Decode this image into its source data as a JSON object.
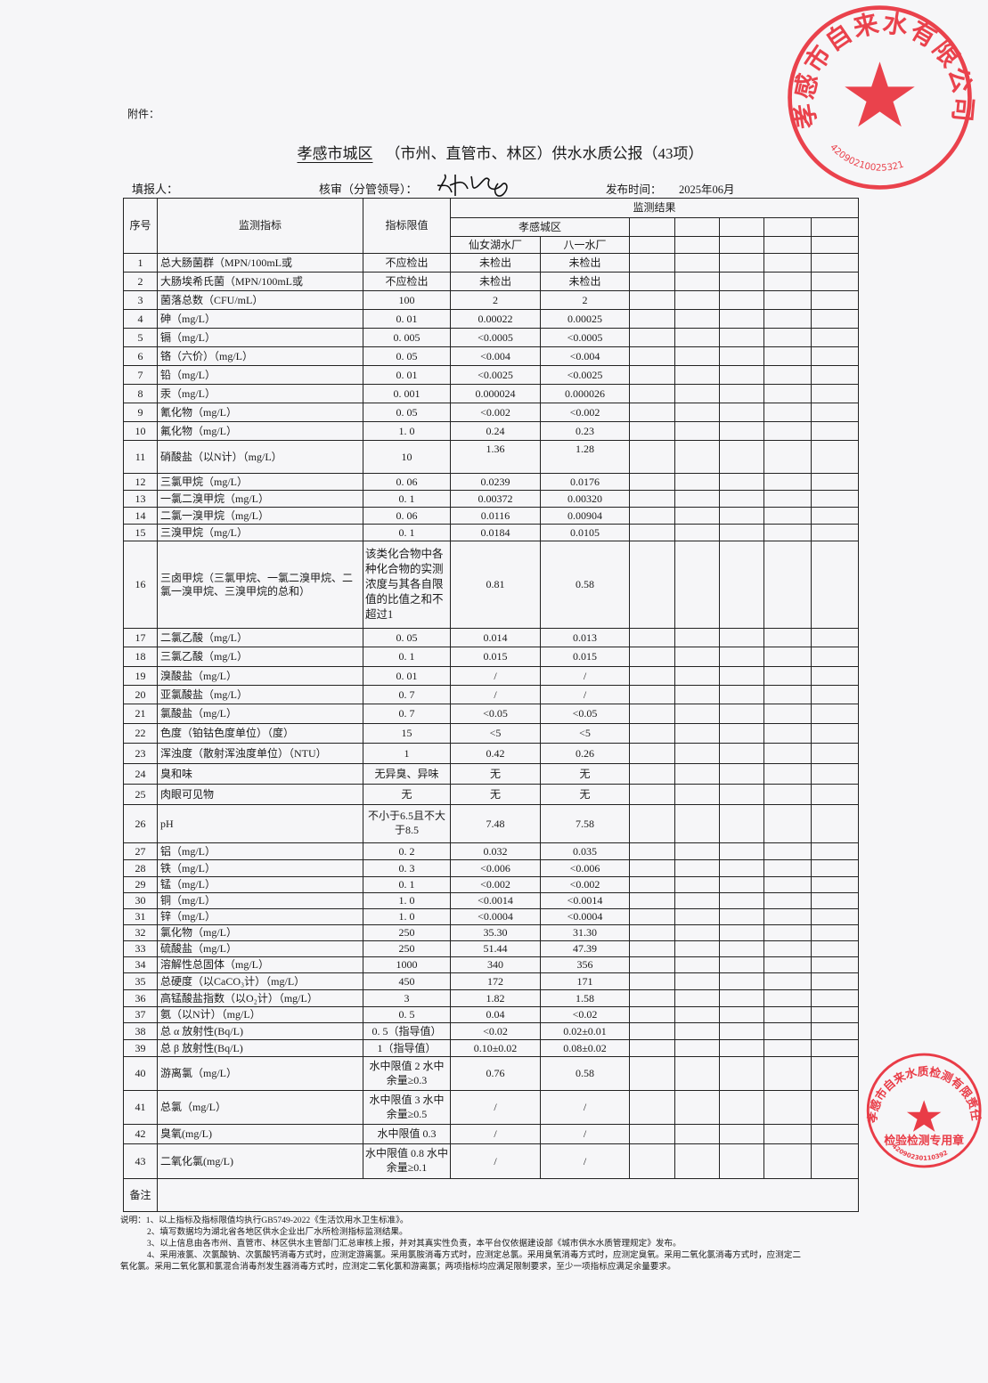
{
  "attachment_label": "附件：",
  "title": {
    "region": "孝感市城区",
    "rest": "（市州、直管市、林区）供水水质公报（43项）"
  },
  "meta": {
    "filler_label": "填报人：",
    "reviewer_label": "核审（分管领导）：",
    "publish_label": "发布时间：",
    "publish_date": "2025年06月"
  },
  "table": {
    "headers": {
      "index": "序号",
      "indicator": "监测指标",
      "limit": "指标限值",
      "results": "监测结果",
      "area": "孝感城区",
      "plants": [
        "仙女湖水厂",
        "八一水厂"
      ]
    },
    "rows": [
      {
        "no": "1",
        "name": "总大肠菌群（MPN/100mL或",
        "limit": "不应检出",
        "r1": "未检出",
        "r2": "未检出"
      },
      {
        "no": "2",
        "name": "大肠埃希氏菌（MPN/100mL或",
        "limit": "不应检出",
        "r1": "未检出",
        "r2": "未检出"
      },
      {
        "no": "3",
        "name": "菌落总数（CFU/mL）",
        "limit": "100",
        "r1": "2",
        "r2": "2"
      },
      {
        "no": "4",
        "name": "砷（mg/L）",
        "limit": "0. 01",
        "r1": "0.00022",
        "r2": "0.00025"
      },
      {
        "no": "5",
        "name": "镉（mg/L）",
        "limit": "0. 005",
        "r1": "<0.0005",
        "r2": "<0.0005"
      },
      {
        "no": "6",
        "name": "铬（六价）（mg/L）",
        "limit": "0. 05",
        "r1": "<0.004",
        "r2": "<0.004"
      },
      {
        "no": "7",
        "name": "铅（mg/L）",
        "limit": "0. 01",
        "r1": "<0.0025",
        "r2": "<0.0025"
      },
      {
        "no": "8",
        "name": "汞（mg/L）",
        "limit": "0. 001",
        "r1": "0.000024",
        "r2": "0.000026"
      },
      {
        "no": "9",
        "name": "氰化物（mg/L）",
        "limit": "0. 05",
        "r1": "<0.002",
        "r2": "<0.002"
      },
      {
        "no": "10",
        "name": "氟化物（mg/L）",
        "limit": "1. 0",
        "r1": "0.24",
        "r2": "0.23"
      },
      {
        "no": "11",
        "name": "硝酸盐（以N计）（mg/L）",
        "limit": "10",
        "r1": "1.36",
        "r2": "1.28"
      },
      {
        "no": "12",
        "name": "三氯甲烷（mg/L）",
        "limit": "0. 06",
        "r1": "0.0239",
        "r2": "0.0176"
      },
      {
        "no": "13",
        "name": "一氯二溴甲烷（mg/L）",
        "limit": "0. 1",
        "r1": "0.00372",
        "r2": "0.00320"
      },
      {
        "no": "14",
        "name": "二氯一溴甲烷（mg/L）",
        "limit": "0. 06",
        "r1": "0.0116",
        "r2": "0.00904"
      },
      {
        "no": "15",
        "name": "三溴甲烷（mg/L）",
        "limit": "0. 1",
        "r1": "0.0184",
        "r2": "0.0105"
      },
      {
        "no": "16",
        "name": "三卤甲烷（三氯甲烷、一氯二溴甲烷、二氯一溴甲烷、三溴甲烷的总和）",
        "limit": "该类化合物中各种化合物的实测浓度与其各自限值的比值之和不超过1",
        "r1": "0.81",
        "r2": "0.58"
      },
      {
        "no": "17",
        "name": "二氯乙酸（mg/L）",
        "limit": "0. 05",
        "r1": "0.014",
        "r2": "0.013"
      },
      {
        "no": "18",
        "name": "三氯乙酸（mg/L）",
        "limit": "0. 1",
        "r1": "0.015",
        "r2": "0.015"
      },
      {
        "no": "19",
        "name": "溴酸盐（mg/L）",
        "limit": "0. 01",
        "r1": "/",
        "r2": "/"
      },
      {
        "no": "20",
        "name": "亚氯酸盐（mg/L）",
        "limit": "0. 7",
        "r1": "/",
        "r2": "/"
      },
      {
        "no": "21",
        "name": "氯酸盐（mg/L）",
        "limit": "0. 7",
        "r1": "<0.05",
        "r2": "<0.05"
      },
      {
        "no": "22",
        "name": "色度（铂钴色度单位）（度）",
        "limit": "15",
        "r1": "<5",
        "r2": "<5"
      },
      {
        "no": "23",
        "name": "浑浊度（散射浑浊度单位）（NTU）",
        "limit": "1",
        "r1": "0.42",
        "r2": "0.26"
      },
      {
        "no": "24",
        "name": "臭和味",
        "limit": "无异臭、异味",
        "r1": "无",
        "r2": "无"
      },
      {
        "no": "25",
        "name": "肉眼可见物",
        "limit": "无",
        "r1": "无",
        "r2": "无"
      },
      {
        "no": "26",
        "name": "pH",
        "limit": "不小于6.5且不大于8.5",
        "r1": "7.48",
        "r2": "7.58"
      },
      {
        "no": "27",
        "name": "铝（mg/L）",
        "limit": "0. 2",
        "r1": "0.032",
        "r2": "0.035"
      },
      {
        "no": "28",
        "name": "铁（mg/L）",
        "limit": "0. 3",
        "r1": "<0.006",
        "r2": "<0.006"
      },
      {
        "no": "29",
        "name": "锰（mg/L）",
        "limit": "0. 1",
        "r1": "<0.002",
        "r2": "<0.002"
      },
      {
        "no": "30",
        "name": "铜（mg/L）",
        "limit": "1. 0",
        "r1": "<0.0014",
        "r2": "<0.0014"
      },
      {
        "no": "31",
        "name": "锌（mg/L）",
        "limit": "1. 0",
        "r1": "<0.0004",
        "r2": "<0.0004"
      },
      {
        "no": "32",
        "name": "氯化物（mg/L）",
        "limit": "250",
        "r1": "35.30",
        "r2": "31.30"
      },
      {
        "no": "33",
        "name": "硫酸盐（mg/L）",
        "limit": "250",
        "r1": "51.44",
        "r2": "47.39"
      },
      {
        "no": "34",
        "name": "溶解性总固体（mg/L）",
        "limit": "1000",
        "r1": "340",
        "r2": "356"
      },
      {
        "no": "35",
        "name": "总硬度（以CaCO₃计）（mg/L）",
        "limit": "450",
        "r1": "172",
        "r2": "171"
      },
      {
        "no": "36",
        "name": "高锰酸盐指数（以O₂计）（mg/L）",
        "limit": "3",
        "r1": "1.82",
        "r2": "1.58"
      },
      {
        "no": "37",
        "name": "氨（以N计）（mg/L）",
        "limit": "0. 5",
        "r1": "0.04",
        "r2": "<0.02"
      },
      {
        "no": "38",
        "name": "总 α 放射性(Bq/L)",
        "limit": "0. 5（指导值）",
        "r1": "<0.02",
        "r2": "0.02±0.01"
      },
      {
        "no": "39",
        "name": "总 β 放射性(Bq/L)",
        "limit": "1（指导值）",
        "r1": "0.10±0.02",
        "r2": "0.08±0.02"
      },
      {
        "no": "40",
        "name": "游离氯（mg/L）",
        "limit": "水中限值 2 水中余量≥0.3",
        "r1": "0.76",
        "r2": "0.58"
      },
      {
        "no": "41",
        "name": "总氯（mg/L）",
        "limit": "水中限值 3 水中余量≥0.5",
        "r1": "/",
        "r2": "/"
      },
      {
        "no": "42",
        "name": "臭氧(mg/L)",
        "limit": "水中限值 0.3",
        "r1": "/",
        "r2": "/"
      },
      {
        "no": "43",
        "name": "二氧化氯(mg/L)",
        "limit": "水中限值 0.8 水中余量≥0.1",
        "r1": "/",
        "r2": "/"
      }
    ],
    "remarks_label": "备注"
  },
  "notes": [
    "说明：1、以上指标及指标限值均执行GB5749-2022《生活饮用水卫生标准》。",
    "2、填写数据均为湖北省各地区供水企业出厂水所检测指标监测结果。",
    "3、以上信息由各市州、直管市、林区供水主管部门汇总审核上报，并对其真实性负责，本平台仅依据建设部《城市供水水质管理规定》发布。",
    "4、采用液氯、次氯酸钠、次氯酸钙消毒方式时，应测定游离氯。采用氯胺消毒方式时，应测定总氯。采用臭氧消毒方式时，应测定臭氧。采用二氧化氯消毒方式时，应测定二",
    "氧化氯。采用二氧化氯和氯混合消毒剂发生器消毒方式时，应测定二氧化氯和游离氯；两项指标均应满足限制要求，至少一项指标应满足余量要求。"
  ],
  "stamps": {
    "top": {
      "text": "孝感市自来水有限公司",
      "number": "42090210025321",
      "color": "#e8232f"
    },
    "bottom": {
      "text": "孝感市自来水质检测有限责任公司",
      "subtitle": "检验检测专用章",
      "number": "42090230110392",
      "color": "#e8232f"
    }
  }
}
